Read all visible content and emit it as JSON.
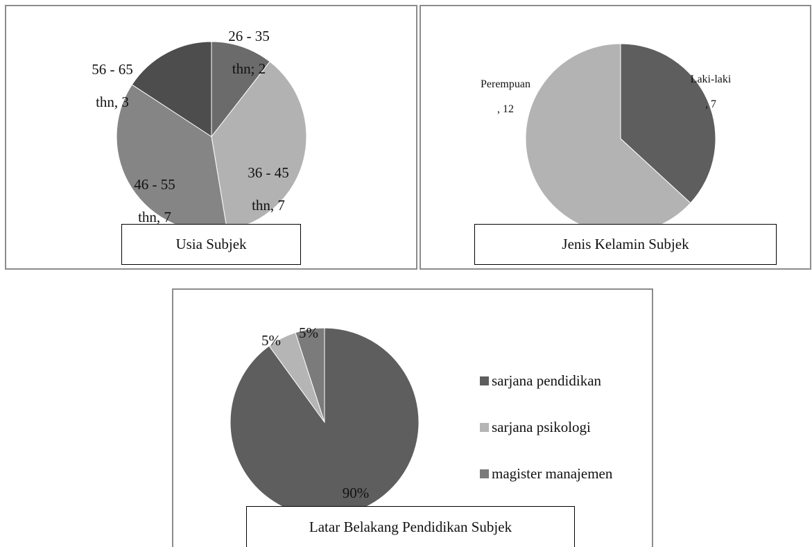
{
  "chart_data": [
    {
      "type": "pie",
      "title": "Usia Subjek",
      "slices": [
        {
          "label_line1": "26 - 35",
          "label_line2": "thn; 2",
          "value": 2,
          "color": "#6b6b6b"
        },
        {
          "label_line1": "36 - 45",
          "label_line2": "thn, 7",
          "value": 7,
          "color": "#b2b2b2"
        },
        {
          "label_line1": "46 - 55",
          "label_line2": "thn, 7",
          "value": 7,
          "color": "#858585"
        },
        {
          "label_line1": "56 - 65",
          "label_line2": "thn, 3",
          "value": 3,
          "color": "#4d4d4d"
        }
      ]
    },
    {
      "type": "pie",
      "title": "Jenis Kelamin Subjek",
      "slices": [
        {
          "label_line1": "Laki-laki",
          "label_line2": ", 7",
          "value": 7,
          "color": "#5e5e5e"
        },
        {
          "label_line1": "Perempuan",
          "label_line2": ", 12",
          "value": 12,
          "color": "#b3b3b3"
        }
      ]
    },
    {
      "type": "pie",
      "title": "Latar Belakang Pendidikan Subjek",
      "slices": [
        {
          "name": "sarjana pendidikan",
          "label": "90%",
          "value": 90,
          "color": "#5e5e5e"
        },
        {
          "name": "sarjana psikologi",
          "label": "5%",
          "value": 5,
          "color": "#b5b5b5"
        },
        {
          "name": "magister manajemen",
          "label": "5%",
          "value": 5,
          "color": "#7b7b7b"
        }
      ],
      "legend_position": "right"
    }
  ]
}
